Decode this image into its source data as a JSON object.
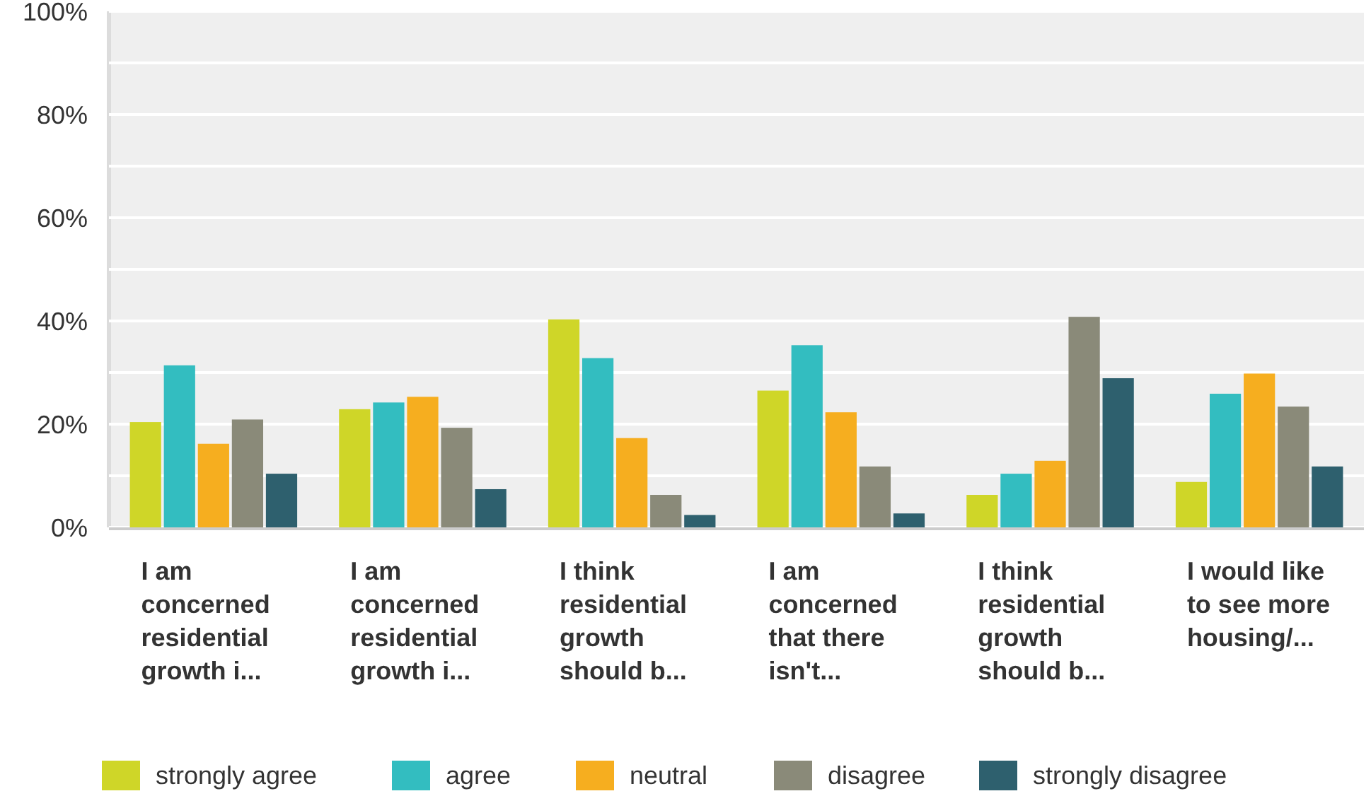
{
  "chart_data": {
    "type": "bar",
    "categories": [
      "I am concerned residential growth i...",
      "I am concerned residential growth i...",
      "I think residential growth should b...",
      "I am concerned that there isn't...",
      "I think residential growth should b...",
      "I would like to see more housing/..."
    ],
    "series": [
      {
        "name": "strongly agree",
        "color": "#cfd628",
        "values": [
          20.4,
          22.9,
          40.3,
          26.5,
          6.3,
          8.8
        ]
      },
      {
        "name": "agree",
        "color": "#33bdc0",
        "values": [
          31.4,
          24.2,
          32.8,
          35.3,
          10.4,
          25.9
        ]
      },
      {
        "name": "neutral",
        "color": "#f6ae1f",
        "values": [
          16.2,
          25.3,
          17.3,
          22.3,
          12.9,
          29.8
        ]
      },
      {
        "name": "disagree",
        "color": "#8a8a79",
        "values": [
          20.9,
          19.3,
          6.3,
          11.8,
          40.8,
          23.4
        ]
      },
      {
        "name": "strongly disagree",
        "color": "#2e606e",
        "values": [
          10.4,
          7.4,
          2.4,
          2.7,
          28.9,
          11.8
        ]
      }
    ],
    "ylim": [
      0,
      100
    ],
    "yticks": [
      {
        "value": 0,
        "label": "0%"
      },
      {
        "value": 10,
        "label": null
      },
      {
        "value": 20,
        "label": "20%"
      },
      {
        "value": 30,
        "label": null
      },
      {
        "value": 40,
        "label": "40%"
      },
      {
        "value": 50,
        "label": null
      },
      {
        "value": 60,
        "label": "60%"
      },
      {
        "value": 70,
        "label": null
      },
      {
        "value": 80,
        "label": "80%"
      },
      {
        "value": 90,
        "label": null
      },
      {
        "value": 100,
        "label": "100%"
      }
    ],
    "grid": "y",
    "legend": "bottom"
  }
}
